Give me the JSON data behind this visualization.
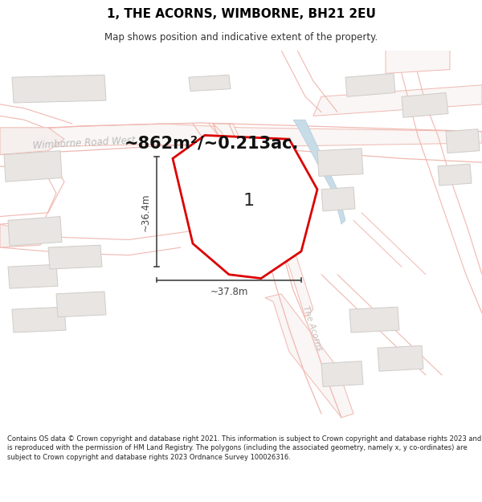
{
  "title": "1, THE ACORNS, WIMBORNE, BH21 2EU",
  "subtitle": "Map shows position and indicative extent of the property.",
  "area_label": "~862m²/~0.213ac.",
  "plot_label": "1",
  "dim_width": "~37.8m",
  "dim_height": "~36.4m",
  "footer": "Contains OS data © Crown copyright and database right 2021. This information is subject to Crown copyright and database rights 2023 and is reproduced with the permission of HM Land Registry. The polygons (including the associated geometry, namely x, y co-ordinates) are subject to Crown copyright and database rights 2023 Ordnance Survey 100026316.",
  "map_bg": "#ffffff",
  "road_line_color": "#f0b8b0",
  "road_fill_color": "#f8e8e5",
  "plot_outline_color": "#dd0000",
  "building_fill": "#e8e5e2",
  "building_outline": "#d0ccc8",
  "water_color": "#c8dce8",
  "water_outline": "#b0ccd8",
  "road_label_color": "#c0b8b5",
  "dim_color": "#444444",
  "title_color": "#000000",
  "area_label_color": "#111111",
  "separator_color": "#cccccc"
}
